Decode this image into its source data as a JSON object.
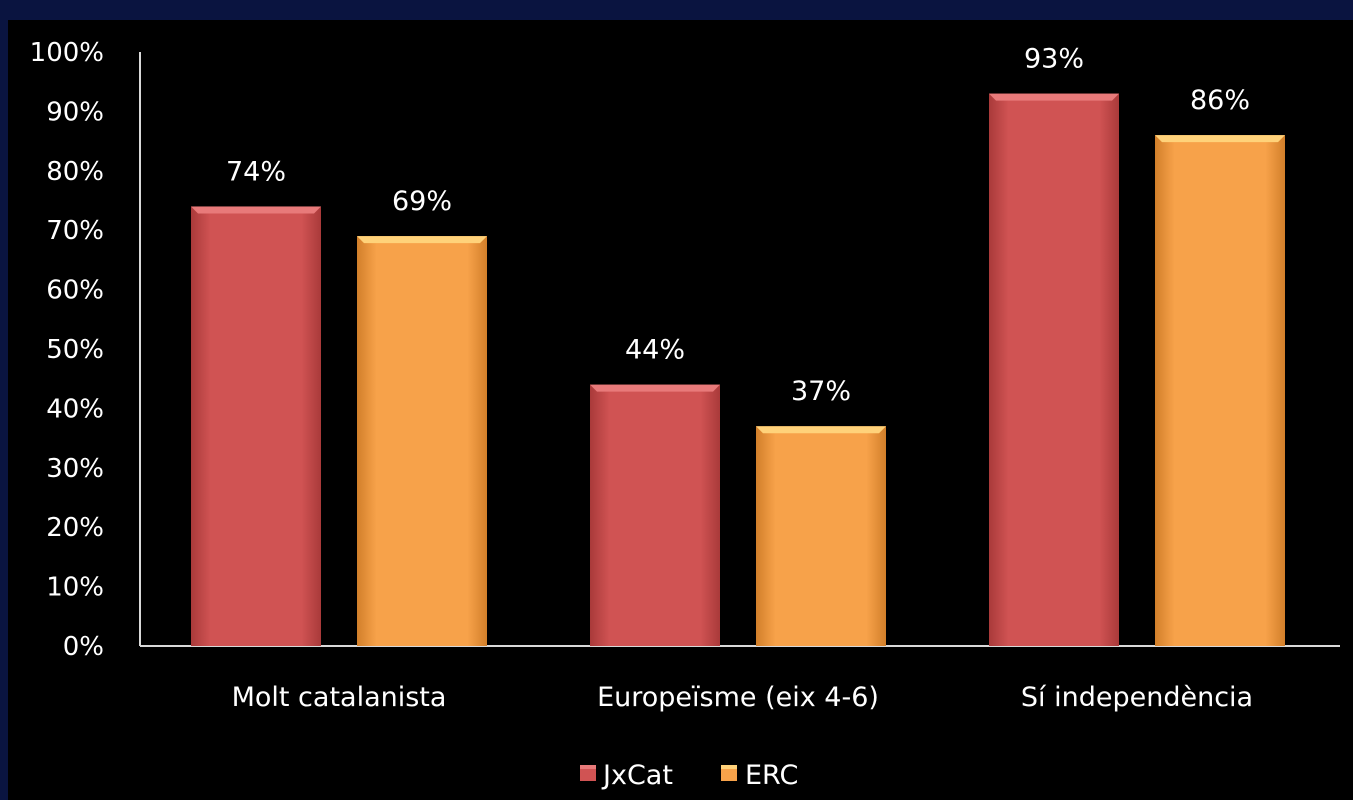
{
  "chart_data": {
    "type": "bar",
    "categories": [
      "Molt catalanista",
      "Europeïsme (eix 4-6)",
      "Sí independència"
    ],
    "series": [
      {
        "name": "JxCat",
        "values": [
          74,
          44,
          93
        ],
        "color": "#d05353",
        "top_color": "#e87a7a"
      },
      {
        "name": "ERC",
        "values": [
          69,
          37,
          86
        ],
        "color": "#f7a24a",
        "top_color": "#ffd27a"
      }
    ],
    "data_labels": [
      [
        "74%",
        "44%",
        "93%"
      ],
      [
        "69%",
        "37%",
        "86%"
      ]
    ],
    "y_ticks": [
      "0%",
      "10%",
      "20%",
      "30%",
      "40%",
      "50%",
      "60%",
      "70%",
      "80%",
      "90%",
      "100%"
    ],
    "ylim": [
      0,
      100
    ],
    "grid": false,
    "legend_position": "bottom",
    "title": "",
    "xlabel": "",
    "ylabel": ""
  },
  "colors": {
    "frame": "#0a1440",
    "background": "#000000",
    "axis": "#d9d9d9",
    "text": "#ffffff"
  }
}
